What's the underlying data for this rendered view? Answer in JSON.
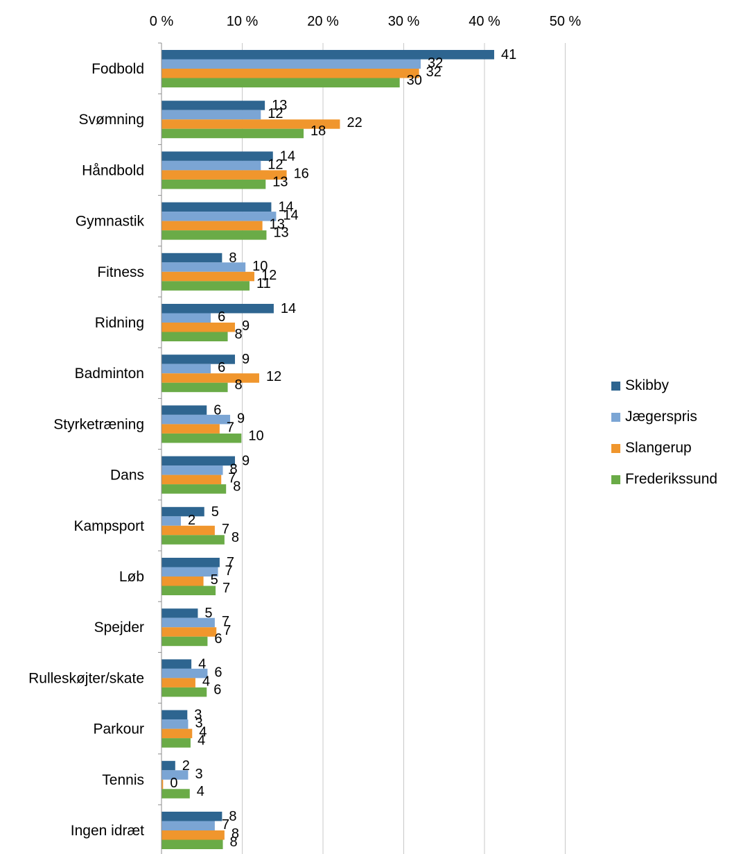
{
  "chart_data": {
    "type": "bar",
    "orientation": "horizontal",
    "categories": [
      "Fodbold",
      "Svømning",
      "Håndbold",
      "Gymnastik",
      "Fitness",
      "Ridning",
      "Badminton",
      "Styrketræning",
      "Dans",
      "Kampsport",
      "Løb",
      "Spejder",
      "Rulleskøjter/skate",
      "Parkour",
      "Tennis",
      "Ingen idræt"
    ],
    "series": [
      {
        "name": "Skibby",
        "color": "#2e6590",
        "values": [
          41.2,
          12.8,
          13.8,
          13.6,
          7.5,
          13.9,
          9.1,
          5.6,
          9.1,
          5.3,
          7.2,
          4.5,
          3.7,
          3.2,
          1.7,
          7.5
        ],
        "labels": [
          "41",
          "13",
          "14",
          "14",
          "8",
          "14",
          "9",
          "6",
          "9",
          "5",
          "7",
          "5",
          "4",
          "3",
          "2",
          "8"
        ]
      },
      {
        "name": "Jægerspris",
        "color": "#7ba5d4",
        "values": [
          32.1,
          12.3,
          12.3,
          14.2,
          10.4,
          6.1,
          6.1,
          8.5,
          7.6,
          2.4,
          7.0,
          6.6,
          5.7,
          3.3,
          3.3,
          6.6
        ],
        "labels": [
          "32",
          "12",
          "12",
          "14",
          "10",
          "6",
          "6",
          "9",
          "8",
          "2",
          "7",
          "7",
          "6",
          "3",
          "3",
          "7"
        ]
      },
      {
        "name": "Slangerup",
        "color": "#f0962d",
        "values": [
          31.9,
          22.1,
          15.5,
          12.5,
          11.5,
          9.1,
          12.1,
          7.2,
          7.4,
          6.6,
          5.2,
          6.8,
          4.2,
          3.8,
          0.2,
          7.8
        ],
        "labels": [
          "32",
          "22",
          "16",
          "13",
          "12",
          "9",
          "12",
          "7",
          "7",
          "7",
          "5",
          "7",
          "4",
          "4",
          "0",
          "8"
        ]
      },
      {
        "name": "Frederikssund",
        "color": "#6aab47",
        "values": [
          29.5,
          17.6,
          12.9,
          13.0,
          10.9,
          8.2,
          8.2,
          9.9,
          8.0,
          7.8,
          6.7,
          5.7,
          5.6,
          3.6,
          3.5,
          7.6
        ],
        "labels": [
          "30",
          "18",
          "13",
          "13",
          "11",
          "8",
          "8",
          "10",
          "8",
          "8",
          "7",
          "6",
          "6",
          "4",
          "4",
          "8"
        ]
      }
    ],
    "x_axis": {
      "ticks": [
        "0 %",
        "10 %",
        "20 %",
        "30 %",
        "40 %",
        "50 %"
      ],
      "tick_values": [
        0,
        10,
        20,
        30,
        40,
        50
      ],
      "position": "top"
    },
    "xlim": [
      0,
      50
    ],
    "grid": true,
    "legend_position": "right"
  }
}
